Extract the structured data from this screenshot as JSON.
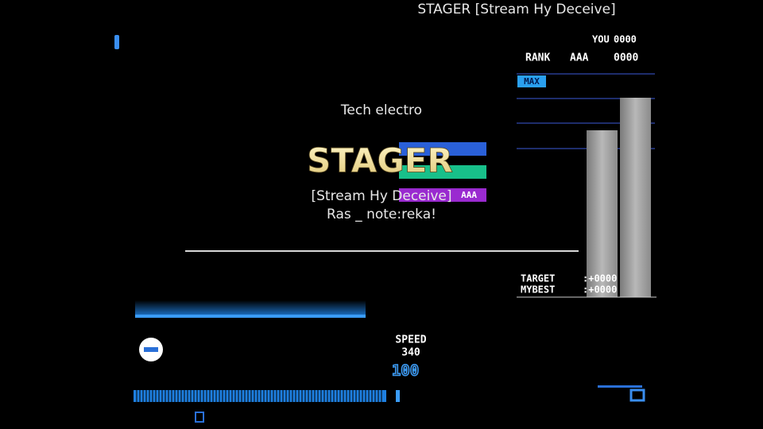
{
  "header": {
    "title": "STAGER [Stream Hy Deceive]"
  },
  "score_panel": {
    "you_label": "YOU",
    "you_score": "0000",
    "rank_label": "RANK",
    "rank": "AAA",
    "rank_score": "0000",
    "max_label": "MAX",
    "target_label": "TARGET",
    "target_value": ":+0000",
    "mybest_label": "MYBEST",
    "mybest_value": ":+0000"
  },
  "song": {
    "genre": "Tech electro",
    "title": "STAGER",
    "subtitle": "[Stream Hy Deceive]",
    "artist": "Ras _ note:reka!",
    "grade": "AAA"
  },
  "speed": {
    "label": "SPEED",
    "value": "340",
    "hi_speed": "100"
  }
}
